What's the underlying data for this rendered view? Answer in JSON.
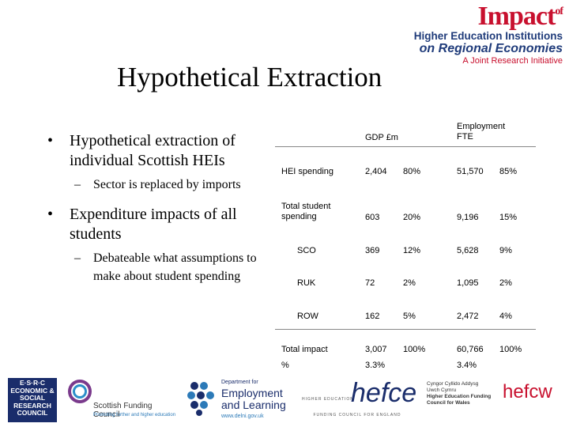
{
  "logo": {
    "line1": "Impact",
    "line1_of": "of",
    "line2": "Higher Education Institutions",
    "line3": "on Regional Economies",
    "line4": "A Joint Research Initiative"
  },
  "title": "Hypothetical Extraction",
  "bullets": [
    {
      "text": "Hypothetical extraction of individual Scottish HEIs",
      "sub": "Sector is replaced by imports"
    },
    {
      "text": "Expenditure impacts of all students",
      "sub": "Debateable what assumptions to make about student spending"
    }
  ],
  "table": {
    "headers": {
      "gdp": "GDP £m",
      "employment": "Employment FTE"
    },
    "rows": [
      {
        "label": "HEI spending",
        "gdp": "2,404",
        "gdp_pct": "80%",
        "emp": "51,570",
        "emp_pct": "85%"
      },
      {
        "label": "Total student spending",
        "gdp": "603",
        "gdp_pct": "20%",
        "emp": "9,196",
        "emp_pct": "15%"
      },
      {
        "label": "SCO",
        "gdp": "369",
        "gdp_pct": "12%",
        "emp": "5,628",
        "emp_pct": "9%"
      },
      {
        "label": "RUK",
        "gdp": "72",
        "gdp_pct": "2%",
        "emp": "1,095",
        "emp_pct": "2%"
      },
      {
        "label": "ROW",
        "gdp": "162",
        "gdp_pct": "5%",
        "emp": "2,472",
        "emp_pct": "4%"
      },
      {
        "label": "Total impact",
        "gdp": "3,007",
        "gdp_pct": "100%",
        "emp": "60,766",
        "emp_pct": "100%"
      },
      {
        "label": "%",
        "gdp": "3.3%",
        "gdp_pct": "",
        "emp": "3.4%",
        "emp_pct": ""
      }
    ]
  },
  "footer": {
    "esrc": "E·S·R·C ECONOMIC & SOCIAL RESEARCH COUNCIL",
    "sfc_name": "Scottish Funding Council",
    "sfc_tag": "Promoting further and higher education",
    "del_dept": "Department for",
    "del_name": "Employment and Learning",
    "del_url": "www.delni.gov.uk",
    "hefce_top": "HIGHER EDUCATION",
    "hefce": "hefce",
    "hefce_bottom": "FUNDING COUNCIL FOR ENGLAND",
    "hefcw_welsh1": "Cyngor Cyllido Addysg",
    "hefcw_welsh2": "Uwch Cymru",
    "hefcw_en1": "Higher Education Funding",
    "hefcw_en2": "Council for Wales",
    "hefcw": "hefcw"
  }
}
